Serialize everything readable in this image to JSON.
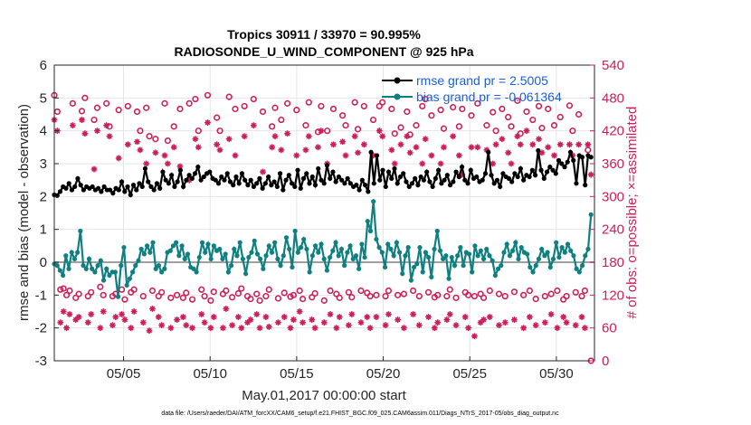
{
  "chart_data": {
    "type": "line",
    "title_line1": "Tropics 30911 / 33970 = 90.995%",
    "title_line2": "RADIOSONDE_U_WIND_COMPONENT @ 925 hPa",
    "xlabel": "May.01,2017 00:00:00 start",
    "ylabel_left": "rmse and bias (model - observation)",
    "ylabel_right": "# of obs: o=possible; ×=assimilated",
    "footnote": "data file: /Users/raeder/DAI/ATM_forcXX/CAM6_setup/f.e21.FHIST_BGC.f09_025.CAM6assim.011/Diags_NTrS_2017-05/obs_diag_output.nc",
    "xlim": [
      1,
      32.2
    ],
    "ylim_left": [
      -3,
      6
    ],
    "ylim_right": [
      0,
      540
    ],
    "x_ticks": [
      5,
      10,
      15,
      20,
      25,
      30
    ],
    "x_tick_labels": [
      "05/05",
      "05/10",
      "05/15",
      "05/20",
      "05/25",
      "05/30"
    ],
    "y_left_ticks": [
      "-3",
      "-2",
      "-1",
      "0",
      "1",
      "2",
      "3",
      "4",
      "5",
      "6"
    ],
    "y_right_ticks": [
      "0",
      "60",
      "120",
      "180",
      "240",
      "300",
      "360",
      "420",
      "480",
      "540"
    ],
    "legend": [
      {
        "label": "rmse grand pr = 2.5005",
        "color": "#000000"
      },
      {
        "label": "bias grand pr = -0.061364",
        "color": "#0e8080"
      }
    ],
    "colors": {
      "rmse": "#000000",
      "bias": "#0e8080",
      "obs": "#cc1f5a",
      "zero_line": "#a0a0a0",
      "legend_text": "#1a5fd6",
      "grid": "#e6e6e6"
    },
    "series": [
      {
        "name": "rmse",
        "values": [
          2.05,
          2.03,
          2.15,
          2.3,
          2.25,
          2.4,
          2.2,
          2.3,
          2.55,
          2.35,
          2.2,
          2.3,
          2.25,
          2.3,
          2.2,
          2.25,
          2.15,
          2.3,
          2.2,
          2.2,
          2.1,
          2.25,
          2.2,
          2.45,
          2.15,
          2.3,
          2.05,
          2.35,
          2.2,
          2.4,
          2.3,
          2.85,
          2.45,
          2.3,
          2.2,
          2.4,
          2.25,
          2.75,
          2.5,
          2.4,
          2.65,
          2.3,
          2.45,
          2.8,
          2.3,
          2.5,
          2.65,
          2.55,
          2.7,
          2.9,
          2.5,
          2.6,
          2.7,
          2.75,
          2.55,
          2.5,
          2.4,
          2.6,
          2.5,
          2.7,
          2.45,
          2.35,
          2.6,
          2.4,
          2.7,
          2.5,
          2.35,
          2.5,
          2.3,
          2.4,
          2.55,
          2.25,
          2.4,
          2.6,
          2.35,
          2.45,
          2.3,
          2.7,
          2.2,
          2.5,
          2.65,
          2.4,
          2.3,
          2.8,
          2.25,
          2.55,
          2.7,
          2.4,
          2.6,
          2.35,
          2.85,
          2.5,
          2.4,
          2.95,
          2.55,
          2.75,
          2.45,
          2.6,
          2.5,
          2.4,
          2.55,
          2.4,
          2.3,
          2.35,
          2.2,
          2.5,
          2.35,
          2.15,
          3.35,
          2.4,
          3.25,
          2.5,
          2.8,
          2.3,
          2.75,
          2.55,
          2.85,
          2.4,
          2.6,
          2.7,
          2.45,
          2.3,
          2.4,
          2.55,
          2.35,
          2.6,
          2.5,
          2.75,
          2.45,
          2.3,
          2.55,
          2.8,
          2.4,
          2.5,
          2.65,
          2.35,
          2.45,
          2.75,
          2.6,
          2.9,
          2.5,
          2.4,
          2.8,
          2.55,
          2.6,
          2.45,
          2.5,
          2.7,
          3.35,
          2.65,
          2.4,
          2.5,
          2.3,
          2.7,
          2.6,
          2.55,
          2.45,
          2.7,
          2.6,
          2.85,
          2.5,
          2.65,
          2.6,
          2.8,
          2.65,
          3.4,
          2.8,
          2.55,
          2.75,
          2.9,
          2.8,
          2.7,
          3.1,
          3.0,
          2.9,
          3.05,
          3.35,
          3.1,
          2.4,
          3.25,
          3.2,
          2.35,
          3.25,
          3.2
        ]
      },
      {
        "name": "bias",
        "values": [
          -0.05,
          -0.1,
          -0.25,
          -0.4,
          0.2,
          -0.2,
          0.3,
          0.1,
          0.3,
          0.95,
          -0.1,
          -0.2,
          0.1,
          -0.2,
          -0.3,
          -0.1,
          0.05,
          -0.55,
          -0.2,
          -0.4,
          -0.3,
          -0.3,
          -1.05,
          -0.1,
          0.45,
          -0.7,
          -0.5,
          -0.3,
          -0.1,
          0.05,
          0.4,
          0.25,
          0.5,
          0.3,
          0.6,
          -0.2,
          -0.1,
          -0.3,
          -0.2,
          0.3,
          0.35,
          0.5,
          0.6,
          0.2,
          0.5,
          0.1,
          0.25,
          -0.15,
          -0.2,
          -0.3,
          0.15,
          0.6,
          0.3,
          0.55,
          0.1,
          0.5,
          0.35,
          0.4,
          0.1,
          0.25,
          -0.3,
          -0.1,
          0.4,
          0.2,
          0.6,
          0.1,
          -0.35,
          0.15,
          0.3,
          0.65,
          0.25,
          0.1,
          -0.2,
          0.2,
          0.5,
          0.3,
          0.6,
          0.1,
          -0.1,
          0.2,
          0.75,
          0.4,
          -0.15,
          0.95,
          0.3,
          0.45,
          0.7,
          0.4,
          -0.3,
          0.2,
          0.5,
          0.3,
          0.55,
          0.1,
          -0.25,
          0.15,
          0.35,
          0.6,
          0.2,
          0.4,
          -0.1,
          0.3,
          0.5,
          0.1,
          0.2,
          -0.2,
          0.55,
          0.15,
          1.25,
          0.95,
          1.85,
          0.7,
          0.45,
          0.3,
          -0.15,
          0.55,
          0.4,
          0.2,
          0.6,
          0.3,
          -0.35,
          0.2,
          0.45,
          -0.55,
          -0.15,
          -0.05,
          0.45,
          -0.3,
          0.3,
          0.15,
          -0.45,
          0.4,
          0.95,
          0.35,
          0.1,
          0.2,
          -0.5,
          0.15,
          -0.1,
          0.2,
          0.45,
          -0.1,
          0.3,
          0.25,
          -0.3,
          0.5,
          0.2,
          0.35,
          0.1,
          0.4,
          0.2,
          0.05,
          -0.4,
          -0.2,
          -0.1,
          0.3,
          0.55,
          0.2,
          0.35,
          0.6,
          0.1,
          0.45,
          0.3,
          0.25,
          -0.15,
          -0.3,
          -0.1,
          0.1,
          0.4,
          0.2,
          0.3,
          -0.15,
          0.1,
          0.6,
          0.15,
          0.45,
          0.3,
          0.55,
          0.35,
          0.2,
          -0.2,
          -0.3,
          -0.1,
          0.2,
          0.4,
          1.45
        ]
      },
      {
        "name": "obs_possible",
        "values": [
          485,
          455,
          130,
          132,
          120,
          128,
          470,
          115,
          122,
          456,
          480,
          118,
          125,
          440,
          462,
          135,
          120,
          470,
          428,
          118,
          122,
          458,
          130,
          112,
          465,
          125,
          130,
          455,
          420,
          118,
          462,
          410,
          128,
          405,
          118,
          125,
          470,
          402,
          115,
          428,
          120,
          460,
          115,
          124,
          470,
          112,
          478,
          420,
          130,
          118,
          485,
          110,
          126,
          444,
          420,
          122,
          128,
          482,
          116,
          460,
          123,
          132,
          465,
          118,
          113,
          478,
          122,
          110,
          455,
          118,
          130,
          428,
          462,
          114,
          440,
          124,
          470,
          117,
          120,
          458,
          128,
          113,
          430,
          472,
          116,
          123,
          418,
          465,
          110,
          420,
          128,
          460,
          122,
          115,
          448,
          430,
          125,
          116,
          472,
          423,
          128,
          465,
          124,
          118,
          440,
          120,
          465,
          472,
          118,
          128,
          460,
          415,
          120,
          426,
          122,
          455,
          413,
          128,
          430,
          118,
          465,
          478,
          125,
          448,
          116,
          120,
          458,
          424,
          118,
          130,
          463,
          115,
          428,
          460,
          125,
          120,
          448,
          118,
          470,
          122,
          115,
          430,
          128,
          454,
          420,
          122,
          460,
          118,
          445,
          428,
          126,
          475,
          415,
          120,
          455,
          128,
          440,
          113,
          465,
          425,
          118,
          460,
          122,
          430,
          128,
          445,
          112,
          118,
          466,
          420,
          125,
          450,
          118,
          128,
          385,
          0
        ]
      },
      {
        "name": "obs_assimilated",
        "values": [
          440,
          420,
          70,
          90,
          60,
          85,
          430,
          75,
          80,
          440,
          415,
          70,
          85,
          350,
          420,
          60,
          90,
          430,
          410,
          65,
          80,
          370,
          85,
          75,
          395,
          60,
          90,
          400,
          385,
          70,
          360,
          55,
          95,
          380,
          80,
          65,
          375,
          360,
          60,
          390,
          75,
          355,
          80,
          65,
          330,
          60,
          405,
          390,
          85,
          70,
          435,
          60,
          80,
          395,
          385,
          60,
          95,
          405,
          65,
          375,
          80,
          60,
          410,
          70,
          75,
          430,
          85,
          60,
          345,
          80,
          62,
          390,
          410,
          70,
          385,
          80,
          415,
          60,
          75,
          375,
          90,
          70,
          385,
          410,
          75,
          60,
          390,
          420,
          70,
          360,
          85,
          395,
          60,
          80,
          400,
          375,
          65,
          85,
          410,
          380,
          70,
          395,
          80,
          60,
          375,
          80,
          420,
          410,
          65,
          85,
          385,
          360,
          75,
          395,
          60,
          410,
          380,
          85,
          390,
          65,
          360,
          405,
          80,
          375,
          60,
          70,
          360,
          390,
          75,
          85,
          410,
          65,
          375,
          340,
          80,
          60,
          390,
          45,
          390,
          70,
          75,
          385,
          80,
          360,
          395,
          65,
          405,
          70,
          380,
          360,
          75,
          410,
          395,
          60,
          420,
          80,
          395,
          65,
          405,
          380,
          70,
          390,
          85,
          375,
          60,
          395,
          80,
          70,
          395,
          375,
          65,
          395,
          80,
          60,
          395,
          340
        ]
      }
    ]
  }
}
